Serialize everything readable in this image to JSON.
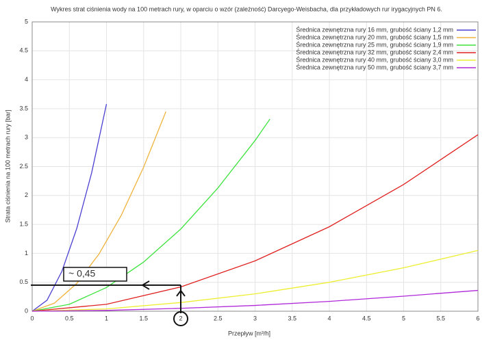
{
  "chart_data": {
    "type": "line",
    "title": "Wykres strat ciśnienia wody na 100 metrach rury, w oparciu o wzór (zależność) Darcyego-Weisbacha, dla przykładowych rur irygacyjnych PN 6.",
    "x_label": "Przepływ [m³/h]",
    "y_label": "Strata ciśnienia na 100 metrach rury [bar]",
    "xlim": [
      0,
      6
    ],
    "ylim": [
      0,
      5
    ],
    "xticks": [
      0,
      0.5,
      1,
      1.5,
      2,
      2.5,
      3,
      3.5,
      4,
      4.5,
      5,
      5.5,
      6
    ],
    "yticks": [
      0,
      0.5,
      1,
      1.5,
      2,
      2.5,
      3,
      3.5,
      4,
      4.5,
      5
    ],
    "legend": "upper right",
    "series": [
      {
        "name": "Średnica zewnętrzna rury 16 mm, grubość ściany 1,2 mm",
        "color": "#4b3fd1",
        "x": [
          0,
          0.2,
          0.4,
          0.6,
          0.8,
          1.0
        ],
        "values": [
          0,
          0.19,
          0.69,
          1.43,
          2.39,
          3.58
        ]
      },
      {
        "name": "Średnica zewnętrzna rury 20 mm, grubość ściany 1,5 mm",
        "color": "#f0b33c",
        "x": [
          0,
          0.3,
          0.6,
          0.9,
          1.2,
          1.5,
          1.8
        ],
        "values": [
          0,
          0.14,
          0.48,
          0.99,
          1.66,
          2.49,
          3.45
        ]
      },
      {
        "name": "Średnica zewnętrzna rury 25 mm, grubość ściany 1,9 mm",
        "color": "#3de33d",
        "x": [
          0,
          0.5,
          1,
          1.5,
          2,
          2.5,
          3,
          3.2
        ],
        "values": [
          0,
          0.12,
          0.41,
          0.85,
          1.42,
          2.13,
          2.95,
          3.32
        ]
      },
      {
        "name": "Średnica zewnętrzna rury 32 mm, grubość ściany 2,4 mm",
        "color": "#e02020",
        "x": [
          0,
          1,
          2,
          3,
          4,
          5,
          6
        ],
        "values": [
          0,
          0.12,
          0.42,
          0.87,
          1.46,
          2.19,
          3.05
        ]
      },
      {
        "name": "Średnica zewnętrzna rury 40 mm, grubość ściany 3,0 mm",
        "color": "#eeee30",
        "x": [
          0,
          1,
          2,
          3,
          4,
          5,
          6
        ],
        "values": [
          0,
          0.04,
          0.15,
          0.3,
          0.5,
          0.75,
          1.05
        ]
      },
      {
        "name": "Średnica zewnętrzna rury 50 mm, grubość ściany 3,7 mm",
        "color": "#b026d9",
        "x": [
          0,
          1,
          2,
          3,
          4,
          5,
          6
        ],
        "values": [
          0,
          0.014,
          0.05,
          0.1,
          0.17,
          0.26,
          0.36
        ]
      }
    ],
    "annotation": {
      "text": "~ 0,45",
      "x": 2,
      "y": 0.45
    }
  }
}
